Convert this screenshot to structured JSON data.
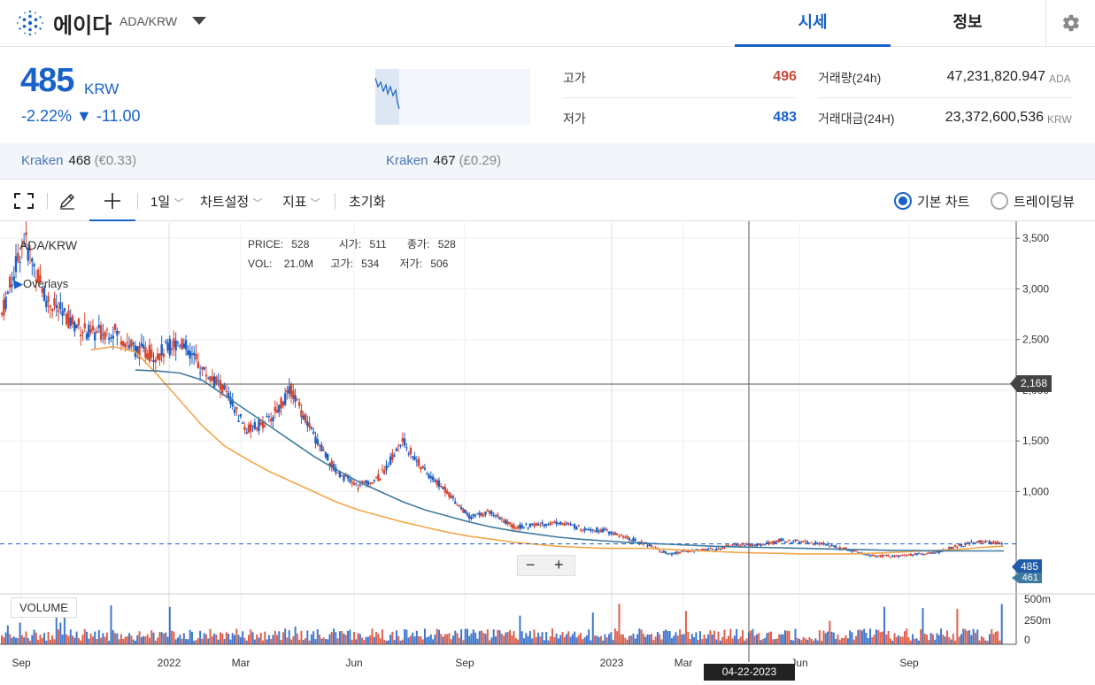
{
  "header": {
    "coin_name": "에이다",
    "pair": "ADA/KRW",
    "tabs": [
      {
        "label": "시세"
      },
      {
        "label": "정보"
      }
    ]
  },
  "summary": {
    "price": "485",
    "price_unit": "KRW",
    "change": "-2.22% ▼ -11.00",
    "high_label": "고가",
    "high_value": "496",
    "low_label": "저가",
    "low_value": "483",
    "volume_label": "거래량(24h)",
    "volume_value": "47,231,820.947",
    "volume_unit": "ADA",
    "turnover_label": "거래대금(24H)",
    "turnover_value": "23,372,600,536",
    "turnover_unit": "KRW"
  },
  "exchanges": [
    {
      "name": "Kraken",
      "value": "468",
      "sub": "(€0.33)"
    },
    {
      "name": "Kraken",
      "value": "467",
      "sub": "(£0.29)"
    }
  ],
  "toolbar": {
    "interval": "1일",
    "settings": "차트설정",
    "indicators": "지표",
    "reset": "초기화",
    "view_basic": "기본 차트",
    "view_tradingview": "트레이딩뷰"
  },
  "chart": {
    "symbol": "ADA/KRW",
    "overlays": "Overlays",
    "legend": {
      "price_label": "PRICE:",
      "price": "528",
      "open_label": "시가:",
      "open": "511",
      "close_label": "종가:",
      "close": "528",
      "vol_label": "VOL:",
      "vol": "21.0M",
      "high_label": "고가:",
      "high": "534",
      "low_label": "저가:",
      "low": "506"
    },
    "volume_label": "VOLUME",
    "crosshair_price": "2,168",
    "crosshair_date": "04-22-2023",
    "last_price_tag": "485",
    "secondary_tag": "461",
    "zoom_minus": "−",
    "zoom_plus": "+",
    "colors": {
      "up": "#d9452f",
      "down": "#1f5fc4",
      "ma_long": "#3f7ba0",
      "ma_short": "#f4a649",
      "accent": "#1761c9"
    }
  },
  "chart_data": {
    "type": "line",
    "title": "ADA/KRW",
    "y_ticks": [
      "3,500",
      "3,000",
      "2,500",
      "2,000",
      "1,500",
      "1,000"
    ],
    "ylim": [
      0,
      3650
    ],
    "x_ticks": [
      "Sep",
      "2022",
      "Mar",
      "Jun",
      "Sep",
      "2023",
      "Mar",
      "Jun",
      "Sep"
    ],
    "volume_ticks": [
      "500m",
      "250m",
      "0"
    ],
    "series": [
      {
        "values": [
          2750,
          3500,
          2900,
          2700,
          2550,
          2600,
          2400,
          2350,
          2500,
          2200,
          2000,
          1600,
          1700,
          2000,
          1550,
          1200,
          1050,
          1150,
          1500,
          1200,
          1000,
          750,
          800,
          650,
          670,
          700,
          640,
          620,
          550,
          480,
          380,
          420,
          430,
          480,
          470,
          520,
          500,
          480,
          430,
          370,
          360,
          380,
          400,
          470,
          510,
          485
        ]
      },
      {
        "values": [
          null,
          null,
          null,
          null,
          2400,
          2430,
          2380,
          2150,
          1900,
          1650,
          1450,
          1320,
          1200,
          1100,
          1000,
          900,
          820,
          760,
          700,
          650,
          600,
          560,
          530,
          500,
          480,
          460,
          450,
          440,
          440,
          440,
          430,
          420,
          410,
          400,
          395,
          390,
          385,
          385,
          385,
          390,
          400,
          410,
          420,
          430,
          450,
          461
        ]
      },
      {
        "values": [
          null,
          null,
          null,
          null,
          null,
          null,
          2200,
          2190,
          2170,
          2100,
          1950,
          1800,
          1650,
          1500,
          1350,
          1220,
          1100,
          1000,
          900,
          820,
          760,
          700,
          650,
          610,
          580,
          550,
          530,
          515,
          500,
          490,
          480,
          470,
          460,
          455,
          450,
          445,
          440,
          435,
          430,
          425,
          420,
          418,
          416,
          415,
          415,
          415
        ]
      }
    ]
  }
}
